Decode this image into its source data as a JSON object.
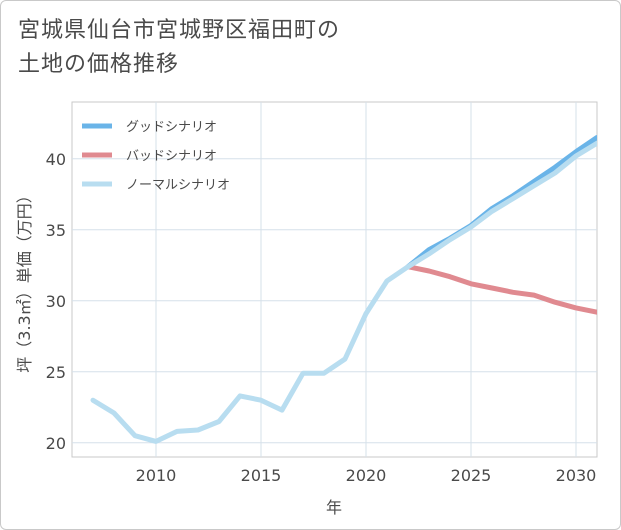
{
  "title_lines": [
    "宮城県仙台市宮城野区福田町の",
    "土地の価格推移"
  ],
  "chart_data": {
    "type": "line",
    "title": "宮城県仙台市宮城野区福田町の土地の価格推移",
    "xlabel": "年",
    "ylabel": "坪（3.3㎡）単価（万円）",
    "xlim": [
      2006,
      2031
    ],
    "ylim": [
      19,
      44
    ],
    "xticks": [
      2010,
      2015,
      2020,
      2025,
      2030
    ],
    "yticks": [
      20,
      25,
      30,
      35,
      40
    ],
    "grid": true,
    "legend_position": "top-left",
    "series": [
      {
        "name": "グッドシナリオ",
        "color": "#6ab4e8",
        "x": [
          2022,
          2023,
          2024,
          2025,
          2026,
          2027,
          2028,
          2029,
          2030,
          2031
        ],
        "values": [
          32.4,
          33.6,
          34.4,
          35.3,
          36.5,
          37.4,
          38.4,
          39.4,
          40.5,
          41.5
        ]
      },
      {
        "name": "バッドシナリオ",
        "color": "#e08a90",
        "x": [
          2022,
          2023,
          2024,
          2025,
          2026,
          2027,
          2028,
          2029,
          2030,
          2031
        ],
        "values": [
          32.4,
          32.1,
          31.7,
          31.2,
          30.9,
          30.6,
          30.4,
          29.9,
          29.5,
          29.2
        ]
      },
      {
        "name": "ノーマルシナリオ",
        "color": "#b8ddf0",
        "x": [
          2007,
          2008,
          2009,
          2010,
          2011,
          2012,
          2013,
          2014,
          2015,
          2016,
          2017,
          2018,
          2019,
          2020,
          2021,
          2022,
          2023,
          2024,
          2025,
          2026,
          2027,
          2028,
          2029,
          2030,
          2031
        ],
        "values": [
          23.0,
          22.1,
          20.5,
          20.1,
          20.8,
          20.9,
          21.5,
          23.3,
          23.0,
          22.3,
          24.9,
          24.9,
          25.9,
          29.1,
          31.4,
          32.4,
          33.3,
          34.3,
          35.2,
          36.3,
          37.2,
          38.1,
          39.0,
          40.2,
          41.1
        ]
      }
    ]
  }
}
